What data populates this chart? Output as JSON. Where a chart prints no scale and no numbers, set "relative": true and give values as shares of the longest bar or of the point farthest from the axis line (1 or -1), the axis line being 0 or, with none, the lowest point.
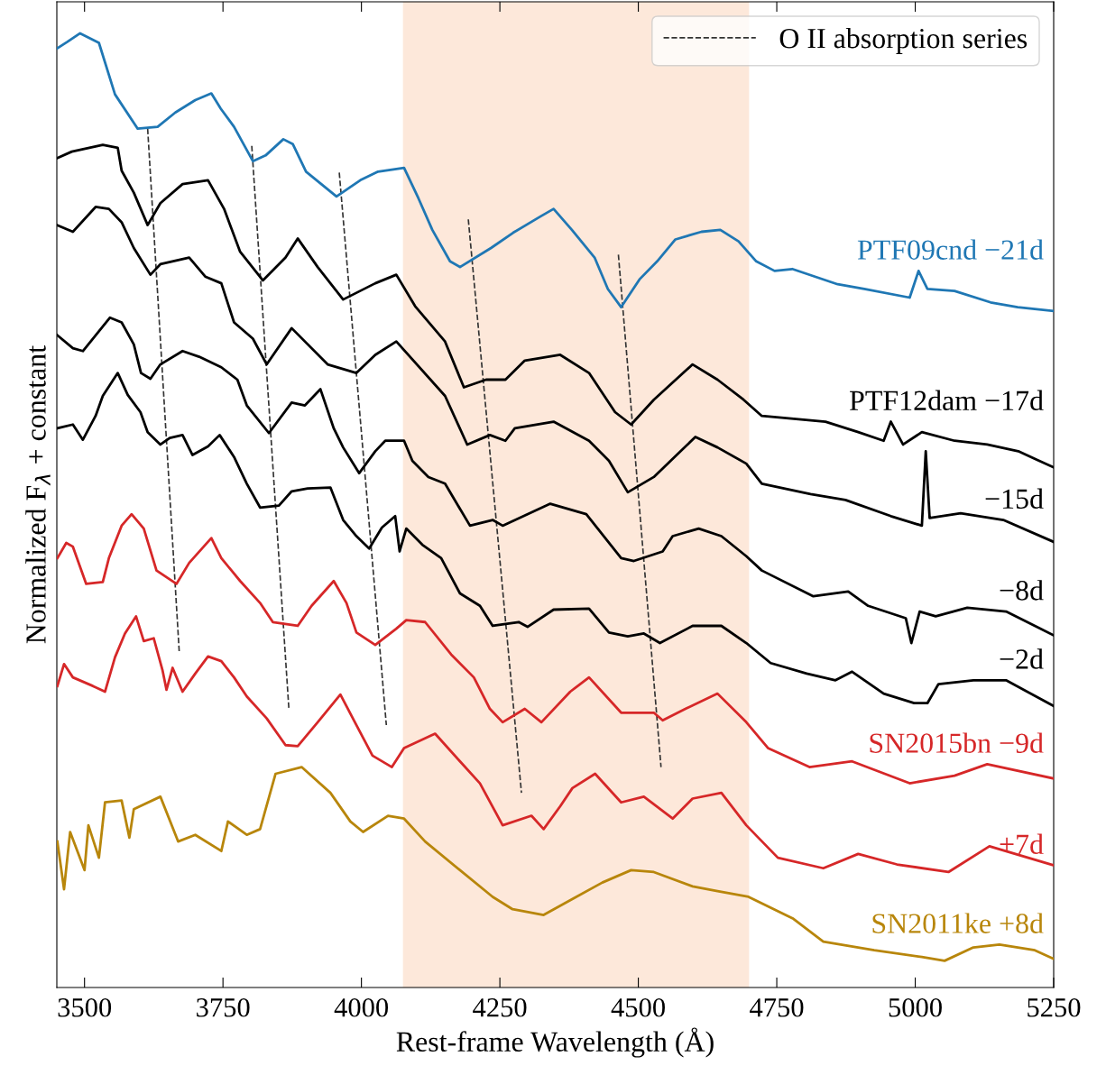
{
  "chart_data": {
    "type": "line",
    "relative": true,
    "xlabel": "Rest-frame Wavelength (Å)",
    "ylabel": "Normalized F$_{λ}$ + constant",
    "xlim": [
      3450,
      5250
    ],
    "xticks": [
      3500,
      3750,
      4000,
      4250,
      4500,
      4750,
      5000,
      5250
    ],
    "legend": "top right",
    "bands": [
      {
        "axis": "x",
        "from": 4075,
        "to": 4700,
        "color": "#fde8da"
      }
    ],
    "series": [
      {
        "name": "PTF09cnd −21d",
        "color": "#1f77b4",
        "x": [
          3450,
          3469,
          3492,
          3526,
          3555,
          3596,
          3632,
          3664,
          3700,
          3729,
          3746,
          3770,
          3804,
          3827,
          3859,
          3876,
          3900,
          3955,
          3998,
          4030,
          4077,
          4103,
          4128,
          4160,
          4178,
          4234,
          4274,
          4323,
          4347,
          4380,
          4421,
          4445,
          4469,
          4502,
          4534,
          4567,
          4614,
          4648,
          4681,
          4713,
          4746,
          4778,
          4860,
          4908,
          4990,
          5006,
          5022,
          5071,
          5136,
          5185,
          5250
        ],
        "values": [
          0.984,
          0.991,
          1.0,
          0.99,
          0.936,
          0.9,
          0.902,
          0.917,
          0.93,
          0.937,
          0.921,
          0.902,
          0.866,
          0.872,
          0.889,
          0.884,
          0.855,
          0.829,
          0.846,
          0.855,
          0.859,
          0.827,
          0.794,
          0.761,
          0.755,
          0.775,
          0.791,
          0.808,
          0.816,
          0.794,
          0.765,
          0.732,
          0.713,
          0.742,
          0.761,
          0.784,
          0.792,
          0.794,
          0.782,
          0.761,
          0.751,
          0.753,
          0.737,
          0.732,
          0.723,
          0.751,
          0.732,
          0.73,
          0.718,
          0.713,
          0.709
        ]
      },
      {
        "name": "PTF12dam −17d",
        "color": "#000000",
        "x": [
          3450,
          3477,
          3533,
          3560,
          3567,
          3589,
          3614,
          3637,
          3677,
          3723,
          3752,
          3781,
          3822,
          3863,
          3885,
          3921,
          3967,
          4025,
          4063,
          4097,
          4151,
          4185,
          4225,
          4260,
          4295,
          4359,
          4411,
          4458,
          4487,
          4528,
          4598,
          4643,
          4690,
          4723,
          4838,
          4897,
          4943,
          4956,
          4978,
          5012,
          5071,
          5130,
          5186,
          5250
        ],
        "values": [
          0.869,
          0.876,
          0.883,
          0.88,
          0.856,
          0.833,
          0.799,
          0.822,
          0.842,
          0.846,
          0.816,
          0.771,
          0.741,
          0.765,
          0.785,
          0.755,
          0.721,
          0.738,
          0.747,
          0.714,
          0.677,
          0.629,
          0.637,
          0.637,
          0.657,
          0.663,
          0.644,
          0.603,
          0.59,
          0.616,
          0.653,
          0.637,
          0.616,
          0.599,
          0.593,
          0.582,
          0.573,
          0.593,
          0.569,
          0.582,
          0.573,
          0.569,
          0.562,
          0.545
        ]
      },
      {
        "name": "−15d",
        "color": "#000000",
        "x": [
          3450,
          3479,
          3520,
          3544,
          3567,
          3589,
          3619,
          3637,
          3689,
          3718,
          3747,
          3770,
          3804,
          3829,
          3874,
          3939,
          3991,
          4025,
          4063,
          4151,
          4191,
          4232,
          4260,
          4277,
          4347,
          4411,
          4447,
          4481,
          4528,
          4603,
          4643,
          4695,
          4723,
          4811,
          4874,
          4956,
          5012,
          5019,
          5026,
          5082,
          5159,
          5250
        ],
        "values": [
          0.799,
          0.792,
          0.818,
          0.816,
          0.802,
          0.775,
          0.747,
          0.758,
          0.765,
          0.745,
          0.738,
          0.697,
          0.68,
          0.653,
          0.691,
          0.653,
          0.644,
          0.663,
          0.677,
          0.62,
          0.569,
          0.579,
          0.573,
          0.586,
          0.593,
          0.573,
          0.552,
          0.519,
          0.535,
          0.577,
          0.566,
          0.549,
          0.528,
          0.517,
          0.511,
          0.494,
          0.484,
          0.562,
          0.492,
          0.497,
          0.49,
          0.467
        ]
      },
      {
        "name": "−8d",
        "color": "#000000",
        "x": [
          3450,
          3479,
          3497,
          3546,
          3567,
          3589,
          3602,
          3619,
          3637,
          3677,
          3707,
          3747,
          3776,
          3793,
          3833,
          3874,
          3898,
          3926,
          3950,
          3967,
          3996,
          4025,
          4043,
          4077,
          4092,
          4121,
          4151,
          4196,
          4237,
          4255,
          4341,
          4406,
          4469,
          4492,
          4544,
          4562,
          4609,
          4650,
          4695,
          4723,
          4816,
          4879,
          4915,
          4983,
          4993,
          5008,
          5037,
          5094,
          5164,
          5216,
          5250
        ],
        "values": [
          0.684,
          0.67,
          0.667,
          0.702,
          0.697,
          0.674,
          0.644,
          0.638,
          0.653,
          0.667,
          0.661,
          0.65,
          0.637,
          0.61,
          0.581,
          0.613,
          0.61,
          0.627,
          0.586,
          0.566,
          0.539,
          0.562,
          0.573,
          0.573,
          0.552,
          0.535,
          0.528,
          0.484,
          0.49,
          0.484,
          0.507,
          0.496,
          0.45,
          0.447,
          0.457,
          0.473,
          0.481,
          0.473,
          0.452,
          0.437,
          0.41,
          0.415,
          0.4,
          0.387,
          0.361,
          0.394,
          0.389,
          0.398,
          0.394,
          0.379,
          0.369
        ]
      },
      {
        "name": "−2d",
        "color": "#000000",
        "x": [
          3450,
          3479,
          3497,
          3520,
          3533,
          3560,
          3578,
          3601,
          3614,
          3637,
          3654,
          3677,
          3695,
          3723,
          3744,
          3770,
          3793,
          3817,
          3851,
          3874,
          3903,
          3944,
          3967,
          3991,
          4014,
          4037,
          4061,
          4069,
          4081,
          4110,
          4144,
          4178,
          4214,
          4237,
          4284,
          4300,
          4347,
          4411,
          4447,
          4481,
          4510,
          4539,
          4598,
          4650,
          4695,
          4739,
          4804,
          4856,
          4886,
          4943,
          4998,
          5022,
          5042,
          5105,
          5164,
          5250
        ],
        "values": [
          0.586,
          0.59,
          0.574,
          0.599,
          0.62,
          0.644,
          0.621,
          0.603,
          0.582,
          0.569,
          0.576,
          0.579,
          0.558,
          0.567,
          0.579,
          0.556,
          0.528,
          0.503,
          0.505,
          0.52,
          0.523,
          0.524,
          0.49,
          0.473,
          0.46,
          0.482,
          0.494,
          0.457,
          0.481,
          0.464,
          0.45,
          0.413,
          0.4,
          0.379,
          0.383,
          0.378,
          0.396,
          0.397,
          0.372,
          0.368,
          0.371,
          0.361,
          0.379,
          0.379,
          0.361,
          0.34,
          0.329,
          0.322,
          0.331,
          0.308,
          0.298,
          0.298,
          0.318,
          0.322,
          0.322,
          0.295
        ]
      },
      {
        "name": "SN2015bn −9d",
        "color": "#d62728",
        "x": [
          3451,
          3467,
          3479,
          3503,
          3533,
          3544,
          3567,
          3585,
          3607,
          3630,
          3666,
          3689,
          3729,
          3747,
          3781,
          3817,
          3840,
          3885,
          3910,
          3950,
          3973,
          3991,
          4025,
          4063,
          4081,
          4115,
          4162,
          4203,
          4232,
          4255,
          4295,
          4325,
          4377,
          4411,
          4469,
          4528,
          4544,
          4585,
          4643,
          4695,
          4734,
          4809,
          4886,
          4990,
          5071,
          5130,
          5250
        ],
        "values": [
          0.45,
          0.466,
          0.462,
          0.423,
          0.425,
          0.45,
          0.484,
          0.496,
          0.481,
          0.437,
          0.423,
          0.445,
          0.471,
          0.45,
          0.426,
          0.403,
          0.383,
          0.379,
          0.4,
          0.426,
          0.403,
          0.372,
          0.359,
          0.376,
          0.385,
          0.383,
          0.349,
          0.325,
          0.292,
          0.278,
          0.292,
          0.278,
          0.31,
          0.325,
          0.288,
          0.288,
          0.28,
          0.292,
          0.308,
          0.278,
          0.251,
          0.231,
          0.237,
          0.214,
          0.222,
          0.234,
          0.219
        ]
      },
      {
        "name": "+7d",
        "color": "#d62728",
        "x": [
          3451,
          3463,
          3479,
          3515,
          3537,
          3555,
          3573,
          3593,
          3607,
          3625,
          3641,
          3648,
          3659,
          3677,
          3700,
          3723,
          3747,
          3770,
          3793,
          3829,
          3863,
          3885,
          3921,
          3962,
          3991,
          4020,
          4055,
          4077,
          4133,
          4178,
          4214,
          4255,
          4307,
          4329,
          4359,
          4381,
          4422,
          4469,
          4510,
          4562,
          4598,
          4650,
          4695,
          4752,
          4834,
          4897,
          4967,
          5060,
          5134,
          5250
        ],
        "values": [
          0.316,
          0.339,
          0.325,
          0.316,
          0.31,
          0.346,
          0.371,
          0.389,
          0.363,
          0.366,
          0.332,
          0.312,
          0.335,
          0.31,
          0.329,
          0.347,
          0.342,
          0.325,
          0.305,
          0.282,
          0.254,
          0.253,
          0.278,
          0.307,
          0.275,
          0.243,
          0.231,
          0.251,
          0.266,
          0.237,
          0.214,
          0.17,
          0.18,
          0.166,
          0.19,
          0.209,
          0.224,
          0.194,
          0.2,
          0.177,
          0.198,
          0.204,
          0.17,
          0.136,
          0.125,
          0.14,
          0.129,
          0.121,
          0.148,
          0.128
        ]
      },
      {
        "name": "SN2011ke +8d",
        "color": "#b8860b",
        "x": [
          3451,
          3463,
          3474,
          3500,
          3507,
          3526,
          3537,
          3567,
          3581,
          3589,
          3637,
          3669,
          3700,
          3747,
          3759,
          3793,
          3817,
          3845,
          3892,
          3944,
          3980,
          4003,
          4048,
          4077,
          4115,
          4178,
          4237,
          4273,
          4329,
          4388,
          4435,
          4487,
          4528,
          4598,
          4643,
          4699,
          4780,
          4834,
          4926,
          5012,
          5053,
          5105,
          5152,
          5216,
          5250
        ],
        "values": [
          0.153,
          0.103,
          0.163,
          0.123,
          0.17,
          0.136,
          0.194,
          0.196,
          0.157,
          0.187,
          0.2,
          0.153,
          0.16,
          0.143,
          0.174,
          0.16,
          0.166,
          0.224,
          0.231,
          0.204,
          0.174,
          0.163,
          0.18,
          0.177,
          0.153,
          0.123,
          0.095,
          0.082,
          0.076,
          0.095,
          0.11,
          0.123,
          0.121,
          0.106,
          0.101,
          0.095,
          0.072,
          0.048,
          0.039,
          0.032,
          0.028,
          0.042,
          0.045,
          0.039,
          0.03
        ]
      },
      {
        "name": "O II absorption series",
        "color": "#333333",
        "line_style": "dashed",
        "x": [
          3614,
          3671,
          null,
          3802,
          3869,
          null,
          3960,
          4045,
          null,
          4193,
          4289,
          null,
          4464,
          4541
        ],
        "values": [
          0.9,
          0.352,
          null,
          0.882,
          0.292,
          null,
          0.854,
          0.275,
          null,
          0.805,
          0.204,
          null,
          0.768,
          0.231
        ]
      }
    ]
  }
}
